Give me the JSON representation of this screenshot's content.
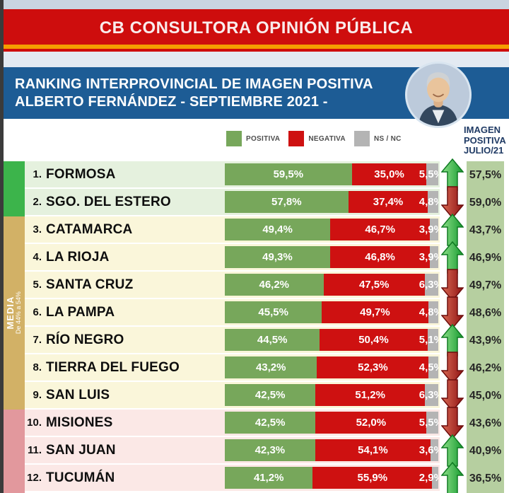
{
  "header": {
    "consultora": "CB CONSULTORA OPINIÓN PÚBLICA",
    "title_line1": "RANKING INTERPROVINCIAL DE IMAGEN POSITIVA",
    "title_line2": "ALBERTO FERNÁNDEZ  - SEPTIEMBRE 2021 -"
  },
  "legend": {
    "positiva": "POSITIVA",
    "negativa": "NEGATIVA",
    "nsnc": "NS / NC"
  },
  "right_header": "IMAGEN\nPOSITIVA\nJULIO/21",
  "media_band": {
    "label": "MEDIA",
    "range": "De 44% a 54%"
  },
  "colors": {
    "pos": "#77a75b",
    "neg": "#ce1111",
    "ns": "#b4b4b4",
    "strip": "#b6cfa0",
    "tierA": "#3cb44b",
    "tierAbg": "#e5f1de",
    "tierM": "#d2b166",
    "tierMbg": "#faf6da",
    "tierB": "#e2989d",
    "tierBbg": "#fbe8e6",
    "redBanner": "#ce0d0d",
    "orange": "#f59d00",
    "blueBand": "#1d5c95"
  },
  "chart_data": {
    "type": "bar",
    "stacked": true,
    "orientation": "horizontal",
    "title": "RANKING INTERPROVINCIAL DE IMAGEN POSITIVA ALBERTO FERNÁNDEZ - SEPTIEMBRE 2021 -",
    "legend": [
      "POSITIVA",
      "NEGATIVA",
      "NS / NC"
    ],
    "xlim": [
      0,
      100
    ],
    "categories": [
      "FORMOSA",
      "SGO. DEL ESTERO",
      "CATAMARCA",
      "LA RIOJA",
      "SANTA CRUZ",
      "LA PAMPA",
      "RÍO NEGRO",
      "TIERRA DEL FUEGO",
      "SAN LUIS",
      "MISIONES",
      "SAN JUAN",
      "TUCUMÁN"
    ],
    "series": [
      {
        "name": "POSITIVA",
        "values": [
          59.5,
          57.8,
          49.4,
          49.3,
          46.2,
          45.5,
          44.5,
          43.2,
          42.5,
          42.5,
          42.3,
          41.2
        ]
      },
      {
        "name": "NEGATIVA",
        "values": [
          35.0,
          37.4,
          46.7,
          46.8,
          47.5,
          49.7,
          50.4,
          52.3,
          51.2,
          52.0,
          54.1,
          55.9
        ]
      },
      {
        "name": "NS / NC",
        "values": [
          5.5,
          4.8,
          3.9,
          3.9,
          6.3,
          4.8,
          5.1,
          4.5,
          6.3,
          5.5,
          3.6,
          2.9
        ]
      }
    ],
    "julio21_positiva": [
      57.5,
      59.0,
      43.7,
      46.9,
      49.7,
      48.6,
      43.9,
      46.2,
      45.0,
      43.6,
      40.9,
      36.5
    ],
    "trend": [
      "up",
      "down",
      "up",
      "up",
      "down",
      "down",
      "up",
      "down",
      "down",
      "down",
      "up",
      "up"
    ],
    "tiers": [
      {
        "rows": [
          1,
          2
        ],
        "label": ""
      },
      {
        "rows": [
          3,
          9
        ],
        "label": "MEDIA",
        "range": "De 44% a 54%"
      },
      {
        "rows": [
          10,
          12
        ],
        "label": ""
      }
    ]
  }
}
